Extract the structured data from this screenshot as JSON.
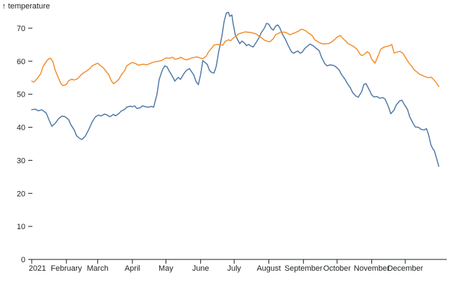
{
  "chart_data": {
    "type": "line",
    "axis_label": "↑ temperature",
    "ylabel": "temperature",
    "x_axis": {
      "tick_labels": [
        "2021",
        "February",
        "March",
        "April",
        "May",
        "June",
        "July",
        "August",
        "September",
        "October",
        "November",
        "December"
      ],
      "tick_days": [
        1,
        32,
        60,
        91,
        121,
        152,
        182,
        213,
        244,
        274,
        305,
        335
      ]
    },
    "y_axis": {
      "ticks": [
        0,
        10,
        20,
        30,
        40,
        50,
        60,
        70
      ],
      "range": [
        0,
        78
      ]
    },
    "x_domain_days": [
      1,
      365
    ],
    "grid": false,
    "legend_position": "none",
    "series": [
      {
        "name": "blue-temperature-series",
        "color": "#4e79a7",
        "points": [
          [
            1,
            45.3
          ],
          [
            4,
            45.5
          ],
          [
            7,
            45.0
          ],
          [
            10,
            45.3
          ],
          [
            14,
            44.3
          ],
          [
            17,
            41.8
          ],
          [
            19,
            40.3
          ],
          [
            22,
            41.2
          ],
          [
            25,
            42.6
          ],
          [
            28,
            43.4
          ],
          [
            31,
            43.2
          ],
          [
            34,
            42.3
          ],
          [
            36,
            40.8
          ],
          [
            39,
            39.2
          ],
          [
            41,
            37.5
          ],
          [
            44,
            36.6
          ],
          [
            46,
            36.3
          ],
          [
            49,
            37.4
          ],
          [
            52,
            39.3
          ],
          [
            55,
            41.6
          ],
          [
            58,
            43.2
          ],
          [
            61,
            43.7
          ],
          [
            63,
            43.4
          ],
          [
            66,
            44.0
          ],
          [
            68,
            43.8
          ],
          [
            71,
            43.2
          ],
          [
            74,
            43.9
          ],
          [
            76,
            43.5
          ],
          [
            79,
            44.2
          ],
          [
            81,
            44.9
          ],
          [
            84,
            45.4
          ],
          [
            86,
            46.1
          ],
          [
            89,
            46.4
          ],
          [
            91,
            46.2
          ],
          [
            93,
            46.5
          ],
          [
            95,
            45.7
          ],
          [
            98,
            45.9
          ],
          [
            100,
            46.5
          ],
          [
            103,
            46.2
          ],
          [
            105,
            46.1
          ],
          [
            108,
            46.3
          ],
          [
            110,
            46.1
          ],
          [
            113,
            50.0
          ],
          [
            115,
            54.5
          ],
          [
            118,
            57.5
          ],
          [
            120,
            58.6
          ],
          [
            122,
            58.3
          ],
          [
            124,
            57.0
          ],
          [
            127,
            55.3
          ],
          [
            129,
            54.0
          ],
          [
            132,
            55.1
          ],
          [
            134,
            54.5
          ],
          [
            137,
            56.2
          ],
          [
            139,
            57.1
          ],
          [
            142,
            57.8
          ],
          [
            144,
            56.8
          ],
          [
            146,
            55.8
          ],
          [
            148,
            53.8
          ],
          [
            150,
            52.9
          ],
          [
            152,
            56.0
          ],
          [
            154,
            60.2
          ],
          [
            156,
            59.6
          ],
          [
            158,
            59.0
          ],
          [
            160,
            57.2
          ],
          [
            162,
            56.6
          ],
          [
            164,
            56.4
          ],
          [
            166,
            58.5
          ],
          [
            168,
            62.5
          ],
          [
            171,
            67.5
          ],
          [
            173,
            72.0
          ],
          [
            175,
            74.6
          ],
          [
            177,
            74.8
          ],
          [
            178,
            73.6
          ],
          [
            180,
            74.0
          ],
          [
            181,
            71.5
          ],
          [
            183,
            68.0
          ],
          [
            185,
            66.6
          ],
          [
            187,
            65.3
          ],
          [
            189,
            66.1
          ],
          [
            191,
            65.6
          ],
          [
            193,
            64.7
          ],
          [
            195,
            65.1
          ],
          [
            197,
            64.6
          ],
          [
            199,
            64.3
          ],
          [
            201,
            65.3
          ],
          [
            204,
            67.0
          ],
          [
            206,
            68.5
          ],
          [
            209,
            70.0
          ],
          [
            211,
            71.5
          ],
          [
            213,
            71.2
          ],
          [
            215,
            70.0
          ],
          [
            217,
            69.4
          ],
          [
            219,
            70.6
          ],
          [
            221,
            71.0
          ],
          [
            223,
            70.0
          ],
          [
            225,
            68.3
          ],
          [
            228,
            66.5
          ],
          [
            230,
            65.0
          ],
          [
            233,
            63.0
          ],
          [
            235,
            62.4
          ],
          [
            237,
            62.8
          ],
          [
            239,
            63.1
          ],
          [
            241,
            62.4
          ],
          [
            243,
            62.8
          ],
          [
            245,
            63.8
          ],
          [
            248,
            64.7
          ],
          [
            250,
            65.2
          ],
          [
            253,
            64.6
          ],
          [
            255,
            64.0
          ],
          [
            258,
            63.2
          ],
          [
            260,
            61.3
          ],
          [
            263,
            59.3
          ],
          [
            265,
            58.6
          ],
          [
            268,
            58.9
          ],
          [
            271,
            58.7
          ],
          [
            273,
            58.3
          ],
          [
            276,
            57.3
          ],
          [
            278,
            56.0
          ],
          [
            281,
            54.6
          ],
          [
            283,
            53.4
          ],
          [
            286,
            51.9
          ],
          [
            288,
            50.5
          ],
          [
            291,
            49.4
          ],
          [
            293,
            49.1
          ],
          [
            296,
            50.8
          ],
          [
            298,
            53.0
          ],
          [
            300,
            53.2
          ],
          [
            303,
            51.2
          ],
          [
            305,
            49.8
          ],
          [
            307,
            49.2
          ],
          [
            310,
            49.3
          ],
          [
            312,
            48.8
          ],
          [
            315,
            49.0
          ],
          [
            317,
            48.5
          ],
          [
            320,
            46.2
          ],
          [
            322,
            44.1
          ],
          [
            325,
            45.2
          ],
          [
            327,
            46.8
          ],
          [
            330,
            48.0
          ],
          [
            332,
            48.2
          ],
          [
            334,
            47.0
          ],
          [
            337,
            45.4
          ],
          [
            339,
            43.2
          ],
          [
            342,
            41.2
          ],
          [
            344,
            40.1
          ],
          [
            347,
            40.0
          ],
          [
            349,
            39.4
          ],
          [
            352,
            39.2
          ],
          [
            354,
            39.6
          ],
          [
            356,
            37.6
          ],
          [
            358,
            34.6
          ],
          [
            360,
            33.3
          ],
          [
            361,
            32.9
          ],
          [
            363,
            30.6
          ],
          [
            365,
            28.2
          ]
        ]
      },
      {
        "name": "orange-temperature-series",
        "color": "#f28e2c",
        "points": [
          [
            1,
            54.0
          ],
          [
            3,
            53.7
          ],
          [
            6,
            54.8
          ],
          [
            9,
            56.2
          ],
          [
            11,
            58.3
          ],
          [
            14,
            59.9
          ],
          [
            16,
            60.7
          ],
          [
            18,
            60.9
          ],
          [
            20,
            59.8
          ],
          [
            22,
            57.3
          ],
          [
            25,
            54.8
          ],
          [
            27,
            53.3
          ],
          [
            29,
            52.6
          ],
          [
            32,
            53.0
          ],
          [
            34,
            54.1
          ],
          [
            37,
            54.6
          ],
          [
            39,
            54.3
          ],
          [
            42,
            54.7
          ],
          [
            45,
            55.8
          ],
          [
            47,
            56.4
          ],
          [
            50,
            57.0
          ],
          [
            53,
            57.8
          ],
          [
            55,
            58.6
          ],
          [
            58,
            59.1
          ],
          [
            60,
            59.4
          ],
          [
            62,
            58.8
          ],
          [
            65,
            58.0
          ],
          [
            67,
            57.2
          ],
          [
            70,
            55.9
          ],
          [
            72,
            54.2
          ],
          [
            74,
            53.2
          ],
          [
            76,
            53.6
          ],
          [
            79,
            54.6
          ],
          [
            81,
            55.8
          ],
          [
            84,
            57.1
          ],
          [
            86,
            58.6
          ],
          [
            89,
            59.3
          ],
          [
            91,
            59.6
          ],
          [
            94,
            59.3
          ],
          [
            96,
            58.8
          ],
          [
            99,
            59.0
          ],
          [
            101,
            59.1
          ],
          [
            104,
            58.9
          ],
          [
            106,
            59.2
          ],
          [
            109,
            59.6
          ],
          [
            111,
            59.8
          ],
          [
            114,
            60.0
          ],
          [
            117,
            60.2
          ],
          [
            119,
            60.6
          ],
          [
            121,
            61.0
          ],
          [
            124,
            60.9
          ],
          [
            127,
            61.2
          ],
          [
            129,
            60.6
          ],
          [
            132,
            60.8
          ],
          [
            134,
            61.2
          ],
          [
            137,
            60.7
          ],
          [
            139,
            60.4
          ],
          [
            142,
            60.7
          ],
          [
            144,
            61.0
          ],
          [
            147,
            61.2
          ],
          [
            149,
            61.3
          ],
          [
            152,
            60.9
          ],
          [
            154,
            60.8
          ],
          [
            157,
            61.5
          ],
          [
            159,
            62.8
          ],
          [
            162,
            64.0
          ],
          [
            164,
            64.9
          ],
          [
            167,
            65.1
          ],
          [
            169,
            65.0
          ],
          [
            172,
            64.9
          ],
          [
            174,
            66.0
          ],
          [
            177,
            66.5
          ],
          [
            179,
            66.2
          ],
          [
            181,
            67.0
          ],
          [
            184,
            67.6
          ],
          [
            186,
            68.3
          ],
          [
            189,
            68.6
          ],
          [
            192,
            68.9
          ],
          [
            194,
            68.8
          ],
          [
            197,
            68.7
          ],
          [
            199,
            68.5
          ],
          [
            202,
            68.2
          ],
          [
            204,
            67.6
          ],
          [
            207,
            67.0
          ],
          [
            209,
            66.4
          ],
          [
            212,
            66.0
          ],
          [
            214,
            65.9
          ],
          [
            217,
            66.8
          ],
          [
            219,
            68.0
          ],
          [
            222,
            68.5
          ],
          [
            224,
            68.8
          ],
          [
            227,
            68.8
          ],
          [
            229,
            68.6
          ],
          [
            232,
            68.0
          ],
          [
            234,
            68.3
          ],
          [
            237,
            68.7
          ],
          [
            240,
            69.2
          ],
          [
            242,
            69.7
          ],
          [
            244,
            69.5
          ],
          [
            246,
            69.2
          ],
          [
            249,
            68.4
          ],
          [
            252,
            67.7
          ],
          [
            254,
            66.5
          ],
          [
            257,
            65.9
          ],
          [
            259,
            65.5
          ],
          [
            262,
            65.2
          ],
          [
            264,
            65.3
          ],
          [
            267,
            65.4
          ],
          [
            269,
            65.8
          ],
          [
            272,
            66.6
          ],
          [
            274,
            67.3
          ],
          [
            277,
            67.8
          ],
          [
            279,
            67.0
          ],
          [
            282,
            66.0
          ],
          [
            284,
            65.3
          ],
          [
            287,
            64.8
          ],
          [
            289,
            64.4
          ],
          [
            292,
            63.6
          ],
          [
            294,
            62.4
          ],
          [
            296,
            61.7
          ],
          [
            298,
            62.0
          ],
          [
            301,
            62.9
          ],
          [
            303,
            62.4
          ],
          [
            305,
            60.6
          ],
          [
            308,
            59.4
          ],
          [
            310,
            61.0
          ],
          [
            313,
            63.6
          ],
          [
            316,
            64.3
          ],
          [
            318,
            64.4
          ],
          [
            321,
            64.7
          ],
          [
            323,
            65.1
          ],
          [
            325,
            62.5
          ],
          [
            328,
            62.8
          ],
          [
            330,
            63.0
          ],
          [
            333,
            62.4
          ],
          [
            335,
            61.2
          ],
          [
            338,
            59.6
          ],
          [
            341,
            58.4
          ],
          [
            343,
            57.4
          ],
          [
            346,
            56.6
          ],
          [
            348,
            56.0
          ],
          [
            351,
            55.6
          ],
          [
            353,
            55.3
          ],
          [
            356,
            55.0
          ],
          [
            358,
            55.2
          ],
          [
            360,
            54.6
          ],
          [
            363,
            53.4
          ],
          [
            365,
            52.3
          ]
        ]
      }
    ]
  }
}
